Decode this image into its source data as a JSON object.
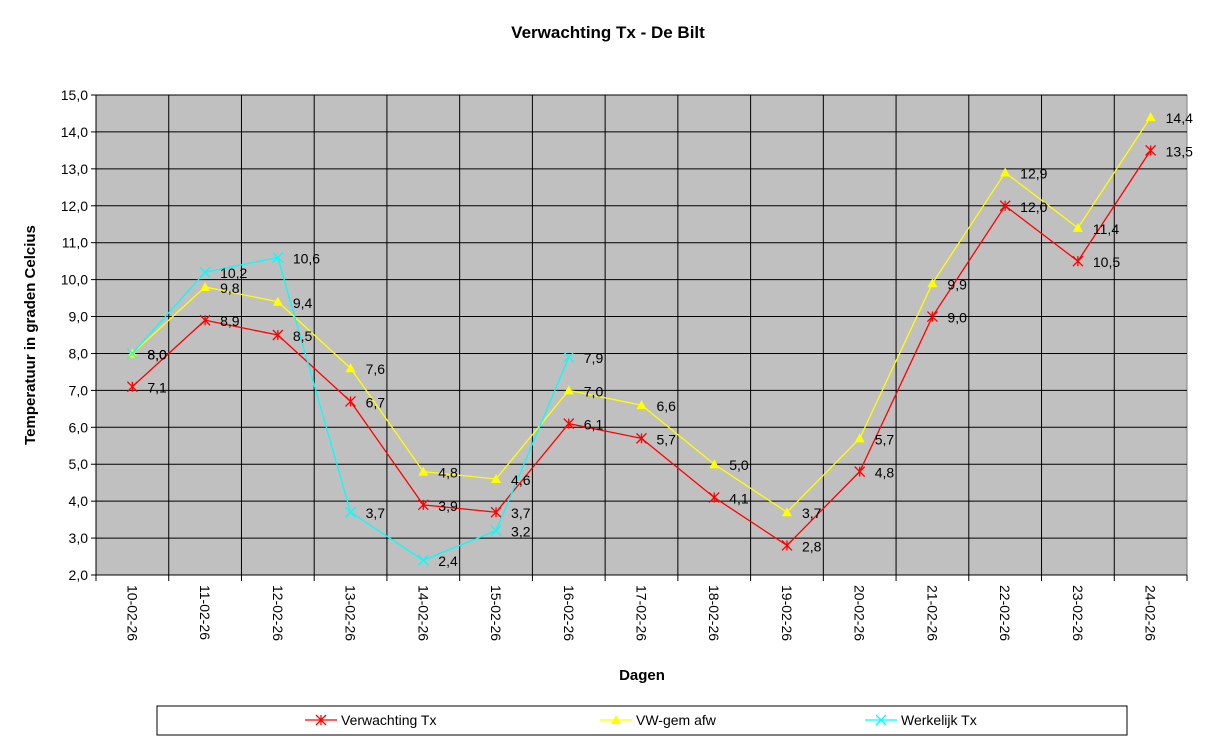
{
  "chart_data": {
    "type": "line",
    "title": "Verwachting Tx - De Bilt",
    "x_label": "Dagen",
    "y_label": "Temperatuur in graden Celcius",
    "categories": [
      "10-02-26",
      "11-02-26",
      "12-02-26",
      "13-02-26",
      "14-02-26",
      "15-02-26",
      "16-02-26",
      "17-02-26",
      "18-02-26",
      "19-02-26",
      "20-02-26",
      "21-02-26",
      "22-02-26",
      "23-02-26",
      "24-02-26"
    ],
    "series": [
      {
        "name": "Verwachting Tx",
        "color": "#ff0000",
        "marker": "star",
        "values": [
          7.1,
          8.9,
          8.5,
          6.7,
          3.9,
          3.7,
          6.1,
          5.7,
          4.1,
          2.8,
          4.8,
          9.0,
          12.0,
          10.5,
          13.5
        ],
        "value_labels": [
          "7,1",
          "8,9",
          "8,5",
          "6,7",
          "3,9",
          "3,7",
          "6,1",
          "5,7",
          "4,1",
          "2,8",
          "4,8",
          "9,0",
          "12,0",
          "10,5",
          "13,5"
        ]
      },
      {
        "name": "VW-gem afw",
        "color": "#ffff00",
        "marker": "triangle",
        "values": [
          8.0,
          9.8,
          9.4,
          7.6,
          4.8,
          4.6,
          7.0,
          6.6,
          5.0,
          3.7,
          5.7,
          9.9,
          12.9,
          11.4,
          14.4
        ],
        "value_labels": [
          "8,0",
          "9,8",
          "9,4",
          "7,6",
          "4,8",
          "4,6",
          "7,0",
          "6,6",
          "5,0",
          "3,7",
          "5,7",
          "9,9",
          "12,9",
          "11,4",
          "14,4"
        ]
      },
      {
        "name": "Werkelijk Tx",
        "color": "#00ffff",
        "marker": "x",
        "values": [
          8.0,
          10.2,
          10.6,
          3.7,
          2.4,
          3.2,
          7.9,
          null,
          null,
          null,
          null,
          null,
          null,
          null,
          null
        ],
        "value_labels": [
          "8,0",
          "10,2",
          "10,6",
          "3,7",
          "2,4",
          "3,2",
          "7,9",
          null,
          null,
          null,
          null,
          null,
          null,
          null,
          null
        ]
      }
    ],
    "ylim": [
      2,
      15
    ],
    "yticks": [
      {
        "value": 2,
        "label": "2,0"
      },
      {
        "value": 3,
        "label": "3,0"
      },
      {
        "value": 4,
        "label": "4,0"
      },
      {
        "value": 5,
        "label": "5,0"
      },
      {
        "value": 6,
        "label": "6,0"
      },
      {
        "value": 7,
        "label": "7,0"
      },
      {
        "value": 8,
        "label": "8,0"
      },
      {
        "value": 9,
        "label": "9,0"
      },
      {
        "value": 10,
        "label": "10,0"
      },
      {
        "value": 11,
        "label": "11,0"
      },
      {
        "value": 12,
        "label": "12,0"
      },
      {
        "value": 13,
        "label": "13,0"
      },
      {
        "value": 14,
        "label": "14,0"
      },
      {
        "value": 15,
        "label": "15,0"
      }
    ],
    "grid": true,
    "legend": "bottom",
    "background": "#c0c0c0"
  }
}
